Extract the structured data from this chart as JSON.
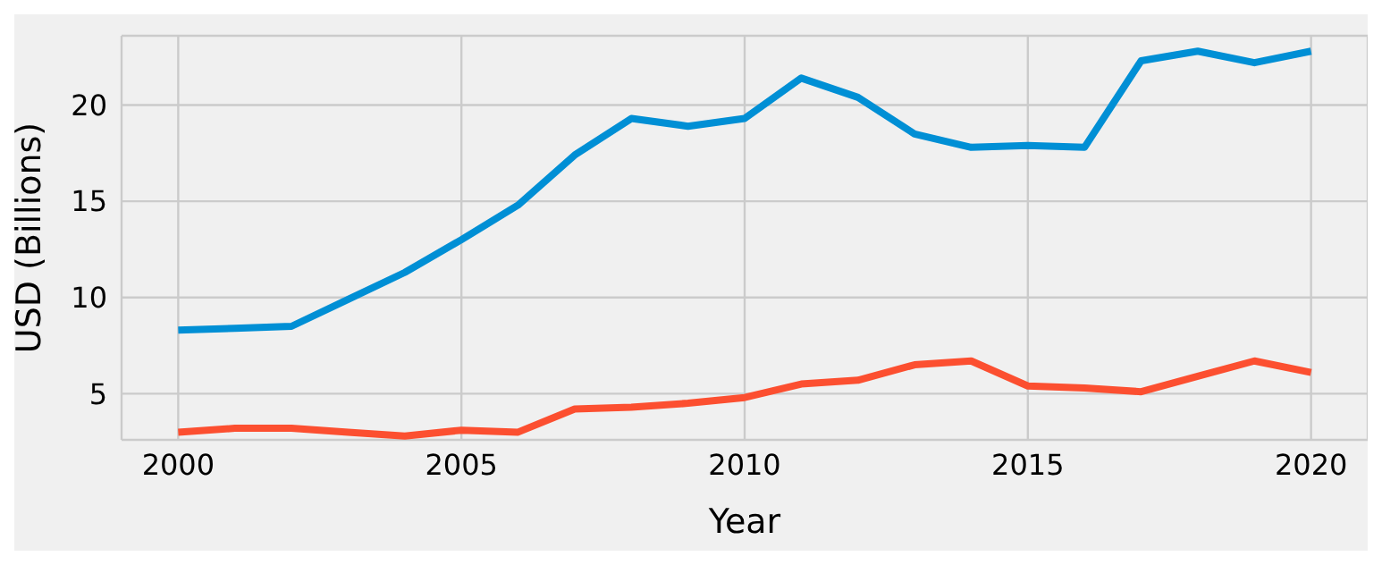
{
  "chart_data": {
    "type": "line",
    "xlabel": "Year",
    "ylabel": "USD (Billions)",
    "x": [
      2000,
      2001,
      2002,
      2003,
      2004,
      2005,
      2006,
      2007,
      2008,
      2009,
      2010,
      2011,
      2012,
      2013,
      2014,
      2015,
      2016,
      2017,
      2018,
      2019,
      2020
    ],
    "series": [
      {
        "color": "#008fd5",
        "values": [
          8.3,
          8.4,
          8.5,
          9.9,
          11.3,
          13.0,
          14.8,
          17.4,
          19.3,
          18.9,
          19.3,
          21.4,
          20.4,
          18.5,
          17.8,
          17.9,
          17.8,
          22.3,
          22.8,
          22.2,
          22.8
        ]
      },
      {
        "color": "#fc4f30",
        "values": [
          3.0,
          3.2,
          3.2,
          3.0,
          2.8,
          3.1,
          3.0,
          4.2,
          4.3,
          4.5,
          4.8,
          5.5,
          5.7,
          6.5,
          6.7,
          5.4,
          5.3,
          5.1,
          5.9,
          6.7,
          6.1
        ]
      }
    ],
    "xlim": [
      1999,
      2021
    ],
    "xticks": [
      2000,
      2005,
      2010,
      2015,
      2020
    ],
    "ylim": [
      2.6,
      23.6
    ],
    "yticks": [
      5,
      10,
      15,
      20
    ],
    "grid": true,
    "marker": "none",
    "line_style": "solid"
  }
}
